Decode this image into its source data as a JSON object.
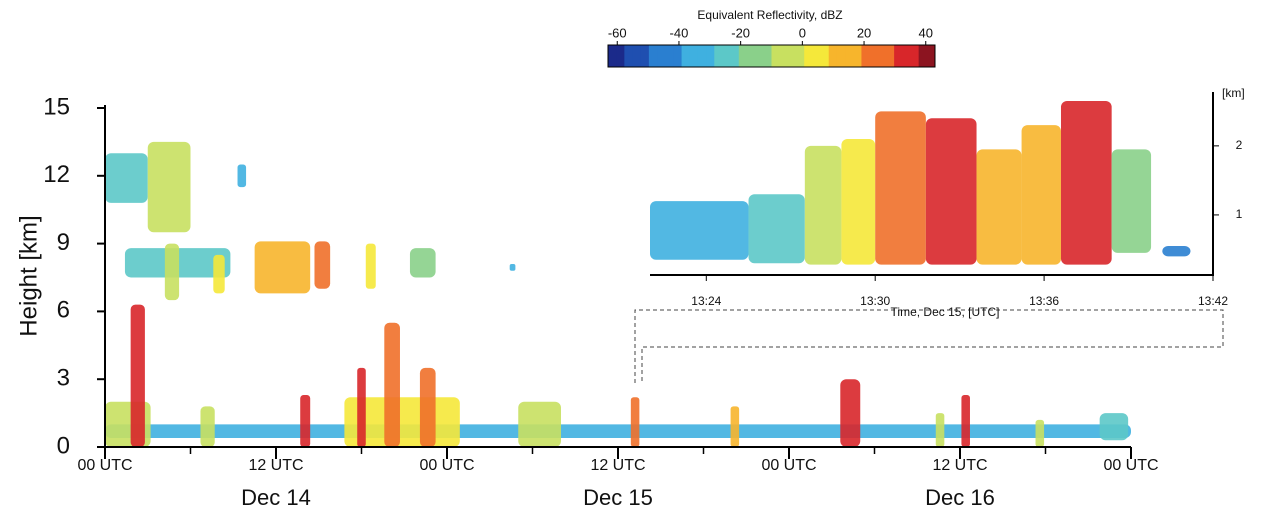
{
  "chart_data": {
    "type": "time-height",
    "ylabel": "Height [km]",
    "xlim": [
      0,
      72
    ],
    "ylim": [
      0,
      15
    ],
    "yticks": [
      0,
      3,
      6,
      9,
      12,
      15
    ],
    "xticks": [
      {
        "value": 0,
        "label": "00 UTC"
      },
      {
        "value": 12,
        "label": "12 UTC"
      },
      {
        "value": 24,
        "label": "00 UTC"
      },
      {
        "value": 36,
        "label": "12 UTC"
      },
      {
        "value": 48,
        "label": "00 UTC"
      },
      {
        "value": 60,
        "label": "12 UTC"
      },
      {
        "value": 72,
        "label": "00 UTC"
      }
    ],
    "xminor_ticks": [
      6,
      18,
      30,
      42,
      54,
      66
    ],
    "dates": [
      {
        "value": 12,
        "label": "Dec 14"
      },
      {
        "value": 36,
        "label": "Dec 15"
      },
      {
        "value": 60,
        "label": "Dec 16"
      }
    ],
    "colorbar": {
      "title": "Equivalent Reflectivity, dBZ",
      "clim": [
        -63,
        43
      ],
      "ticks": [
        -60,
        -40,
        -20,
        0,
        20,
        40
      ],
      "colormap": [
        "#1b2a8a",
        "#1f4fb0",
        "#2a7fd0",
        "#3fb0e0",
        "#5cc8c8",
        "#8ad08a",
        "#c8e060",
        "#f5e83a",
        "#f7b52c",
        "#f0702a",
        "#d8262a",
        "#8c1420"
      ]
    },
    "echoes": [
      {
        "start": 0,
        "end": 72,
        "bottom": 0.4,
        "top": 1.0,
        "dbz": -38
      },
      {
        "start": 0,
        "end": 3,
        "bottom": 10.8,
        "top": 13,
        "dbz": -25
      },
      {
        "start": 3,
        "end": 6,
        "bottom": 9.5,
        "top": 13.5,
        "dbz": -5
      },
      {
        "start": 9.3,
        "end": 9.9,
        "bottom": 11.5,
        "top": 12.5,
        "dbz": -30
      },
      {
        "start": 1.4,
        "end": 8.8,
        "bottom": 7.5,
        "top": 8.8,
        "dbz": -25
      },
      {
        "start": 4.2,
        "end": 5.2,
        "bottom": 6.5,
        "top": 9,
        "dbz": -5
      },
      {
        "start": 7.6,
        "end": 8.4,
        "bottom": 6.8,
        "top": 8.5,
        "dbz": 0
      },
      {
        "start": 10.5,
        "end": 14.4,
        "bottom": 6.8,
        "top": 9.1,
        "dbz": 15
      },
      {
        "start": 14.7,
        "end": 15.8,
        "bottom": 7,
        "top": 9.1,
        "dbz": 20
      },
      {
        "start": 18.3,
        "end": 19,
        "bottom": 7,
        "top": 9,
        "dbz": 0
      },
      {
        "start": 21.4,
        "end": 23.2,
        "bottom": 7.5,
        "top": 8.8,
        "dbz": -15
      },
      {
        "start": 28.4,
        "end": 28.8,
        "bottom": 7.8,
        "top": 8.1,
        "dbz": -35
      },
      {
        "start": 0,
        "end": 3.2,
        "bottom": 0,
        "top": 2,
        "dbz": -10
      },
      {
        "start": 1.8,
        "end": 2.8,
        "bottom": 0,
        "top": 6.3,
        "dbz": 30
      },
      {
        "start": 6.7,
        "end": 7.7,
        "bottom": 0,
        "top": 1.8,
        "dbz": -5
      },
      {
        "start": 13.7,
        "end": 14.4,
        "bottom": 0,
        "top": 2.3,
        "dbz": 35
      },
      {
        "start": 16.8,
        "end": 24.9,
        "bottom": 0,
        "top": 2.2,
        "dbz": 5
      },
      {
        "start": 17.7,
        "end": 18.3,
        "bottom": 0,
        "top": 3.5,
        "dbz": 30
      },
      {
        "start": 19.6,
        "end": 20.7,
        "bottom": 0,
        "top": 5.5,
        "dbz": 20
      },
      {
        "start": 22.1,
        "end": 23.2,
        "bottom": 0,
        "top": 3.5,
        "dbz": 25
      },
      {
        "start": 29,
        "end": 32,
        "bottom": 0,
        "top": 2,
        "dbz": -10
      },
      {
        "start": 36.9,
        "end": 37.5,
        "bottom": 0,
        "top": 2.2,
        "dbz": 25
      },
      {
        "start": 43.9,
        "end": 44.5,
        "bottom": 0,
        "top": 1.8,
        "dbz": 10
      },
      {
        "start": 51.6,
        "end": 53,
        "bottom": 0,
        "top": 3,
        "dbz": 30
      },
      {
        "start": 58.3,
        "end": 58.9,
        "bottom": 0,
        "top": 1.5,
        "dbz": -5
      },
      {
        "start": 60.1,
        "end": 60.7,
        "bottom": 0,
        "top": 2.3,
        "dbz": 35
      },
      {
        "start": 65.3,
        "end": 65.9,
        "bottom": 0,
        "top": 1.2,
        "dbz": -10
      },
      {
        "start": 69.8,
        "end": 71.8,
        "bottom": 0.3,
        "top": 1.5,
        "dbz": -20
      }
    ],
    "inset": {
      "xlabel": "Time, Dec 15, [UTC]",
      "yunit": "[km]",
      "xlim": [
        22,
        42
      ],
      "ylim": [
        0.13,
        2.78
      ],
      "xticks": [
        {
          "value": 24,
          "label": "13:24"
        },
        {
          "value": 30,
          "label": "13:30"
        },
        {
          "value": 36,
          "label": "13:36"
        },
        {
          "value": 42,
          "label": "13:42"
        }
      ],
      "yticks": [
        1,
        2
      ],
      "echoes": [
        {
          "start": 22,
          "end": 25.5,
          "bottom": 0.35,
          "top": 1.2,
          "dbz": -30
        },
        {
          "start": 25.5,
          "end": 27.5,
          "bottom": 0.3,
          "top": 1.3,
          "dbz": -25
        },
        {
          "start": 27.5,
          "end": 28.8,
          "bottom": 0.28,
          "top": 2.0,
          "dbz": -5
        },
        {
          "start": 28.8,
          "end": 30,
          "bottom": 0.28,
          "top": 2.1,
          "dbz": 0
        },
        {
          "start": 30,
          "end": 31.8,
          "bottom": 0.28,
          "top": 2.5,
          "dbz": 25
        },
        {
          "start": 31.8,
          "end": 33.6,
          "bottom": 0.28,
          "top": 2.4,
          "dbz": 30
        },
        {
          "start": 33.6,
          "end": 35.2,
          "bottom": 0.28,
          "top": 1.95,
          "dbz": 15
        },
        {
          "start": 35.2,
          "end": 36.6,
          "bottom": 0.28,
          "top": 2.3,
          "dbz": 15
        },
        {
          "start": 36.6,
          "end": 38.4,
          "bottom": 0.28,
          "top": 2.65,
          "dbz": 35
        },
        {
          "start": 38.4,
          "end": 39.8,
          "bottom": 0.45,
          "top": 1.95,
          "dbz": -15
        },
        {
          "start": 40.2,
          "end": 41.2,
          "bottom": 0.4,
          "top": 0.55,
          "dbz": -40
        }
      ]
    }
  }
}
